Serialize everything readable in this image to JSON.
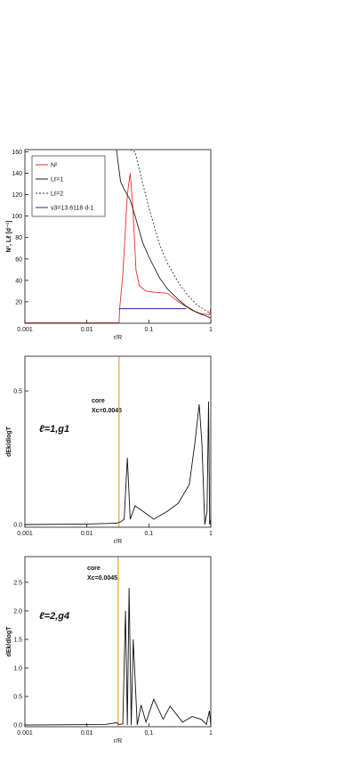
{
  "chart_data": [
    {
      "type": "line",
      "xlog": true,
      "xlim": [
        0.001,
        1
      ],
      "xticks": [
        0.001,
        0.01,
        0.1,
        1
      ],
      "ylim": [
        0,
        162
      ],
      "yticks": [
        20,
        40,
        60,
        80,
        100,
        120,
        140,
        160
      ],
      "xlabel": "r/R",
      "ylabel": "N², Lℓ [d⁻¹]",
      "legend": "upper left",
      "series": [
        {
          "name": "N²",
          "color": "#e8322a",
          "dash": "none",
          "x": [
            0.001,
            0.033,
            0.034,
            0.038,
            0.045,
            0.05,
            0.055,
            0.062,
            0.07,
            0.09,
            0.12,
            0.2,
            0.3,
            0.5,
            0.7,
            0.95,
            1
          ],
          "values": [
            0.5,
            0.5,
            15,
            45,
            120,
            140,
            110,
            50,
            35,
            30,
            29,
            28,
            20,
            12,
            9,
            8,
            14
          ]
        },
        {
          "name": "Lℓ=1",
          "color": "#222222",
          "dash": "none",
          "x": [
            0.03,
            0.035,
            0.04,
            0.05,
            0.06,
            0.08,
            0.1,
            0.15,
            0.2,
            0.3,
            0.4,
            0.6,
            1
          ],
          "values": [
            162,
            132,
            125,
            115,
            100,
            75,
            62,
            42,
            32,
            22,
            16,
            10,
            5
          ]
        },
        {
          "name": "Lℓ=2",
          "color": "#333333",
          "dash": "2,2",
          "x": [
            0.05,
            0.06,
            0.08,
            0.1,
            0.15,
            0.2,
            0.3,
            0.4,
            0.6,
            1
          ],
          "values": [
            162,
            160,
            130,
            108,
            73,
            56,
            38,
            28,
            17,
            9
          ]
        },
        {
          "name": "ν3=13.6118 d-1",
          "color": "#1f2a9c",
          "dash": "none",
          "x": [
            0.033,
            0.4
          ],
          "values": [
            13.6118,
            13.6118
          ]
        }
      ]
    },
    {
      "type": "line",
      "xlog": true,
      "xlim": [
        0.001,
        1
      ],
      "xticks": [
        0.001,
        0.01,
        0.1,
        1
      ],
      "ylim": [
        -0.01,
        0.63
      ],
      "yticks": [
        {
          "value": 0,
          "label": "0.0"
        },
        {
          "value": 0.5,
          "label": "0.5"
        }
      ],
      "xlabel": "r/R",
      "ylabel": "dEk/dlogT",
      "mode": "ℓ=1,g1",
      "core": "core",
      "xc": "Xc=0.0045",
      "core_line": {
        "x": 0.033,
        "color": "#f0a030"
      },
      "series": [
        {
          "color": "#111111",
          "dash": "none",
          "x": [
            0.001,
            0.01,
            0.03,
            0.035,
            0.04,
            0.045,
            0.05,
            0.06,
            0.08,
            0.12,
            0.2,
            0.3,
            0.45,
            0.55,
            0.65,
            0.72,
            0.8,
            0.87,
            0.92,
            0.96,
            1
          ],
          "values": [
            0,
            0.002,
            0.005,
            0.01,
            0.02,
            0.25,
            0.02,
            0.07,
            0.05,
            0.02,
            0.05,
            0.08,
            0.15,
            0.3,
            0.45,
            0.3,
            0,
            0.05,
            0.46,
            0,
            0.02
          ]
        }
      ]
    },
    {
      "type": "line",
      "xlog": true,
      "xlim": [
        0.001,
        1
      ],
      "xticks": [
        0.001,
        0.01,
        0.1,
        1
      ],
      "ylim": [
        -0.03,
        2.95
      ],
      "yticks": [
        {
          "value": 0,
          "label": "0.0"
        },
        {
          "value": 0.5,
          "label": "0.5"
        },
        {
          "value": 1,
          "label": "1.0"
        },
        {
          "value": 1.5,
          "label": "1.5"
        },
        {
          "value": 2,
          "label": "2.0"
        },
        {
          "value": 2.5,
          "label": "2.5"
        }
      ],
      "xlabel": "r/R",
      "ylabel": "dEk/dlogT",
      "mode": "ℓ=2,g4",
      "core": "core",
      "xc": "Xc=0.0045",
      "core_line": {
        "x": 0.032,
        "color": "#f0a030"
      },
      "series": [
        {
          "color": "#111111",
          "dash": "none",
          "x": [
            0.001,
            0.02,
            0.03,
            0.033,
            0.038,
            0.042,
            0.045,
            0.048,
            0.052,
            0.056,
            0.065,
            0.075,
            0.09,
            0.12,
            0.17,
            0.22,
            0.35,
            0.5,
            0.7,
            0.85,
            0.95,
            1
          ],
          "values": [
            0,
            0.01,
            0.04,
            0.01,
            0.02,
            2.0,
            0,
            2.4,
            0,
            1.5,
            0,
            0.35,
            0.05,
            0.45,
            0.1,
            0.33,
            0.05,
            0.15,
            0.1,
            0.01,
            0.25,
            0
          ]
        }
      ]
    }
  ]
}
